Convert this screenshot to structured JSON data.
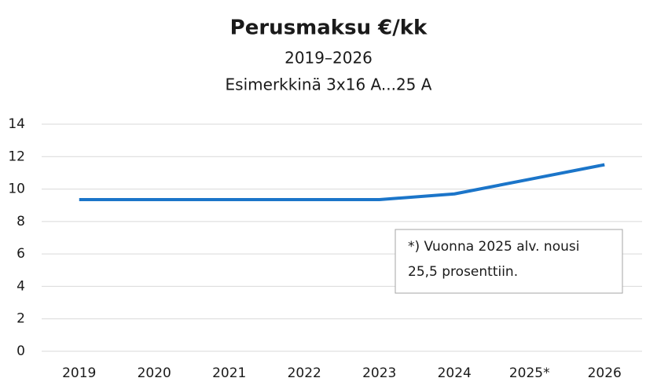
{
  "chart_data": {
    "type": "line",
    "title": "Perusmaksu €/kk",
    "subtitles": [
      "2019–2026",
      "Esimerkkinä 3x16 A...25 A"
    ],
    "categories": [
      "2019",
      "2020",
      "2021",
      "2022",
      "2023",
      "2024",
      "2025*",
      "2026"
    ],
    "values": [
      9.35,
      9.35,
      9.35,
      9.35,
      9.35,
      9.7,
      10.6,
      11.5
    ],
    "color": "#1b75c9",
    "ylim": [
      0,
      14
    ],
    "yticks": [
      0,
      2,
      4,
      6,
      8,
      10,
      12,
      14
    ],
    "grid": true,
    "annotation": [
      "*) Vuonna 2025 alv. nousi",
      "25,5 prosenttiin."
    ]
  }
}
